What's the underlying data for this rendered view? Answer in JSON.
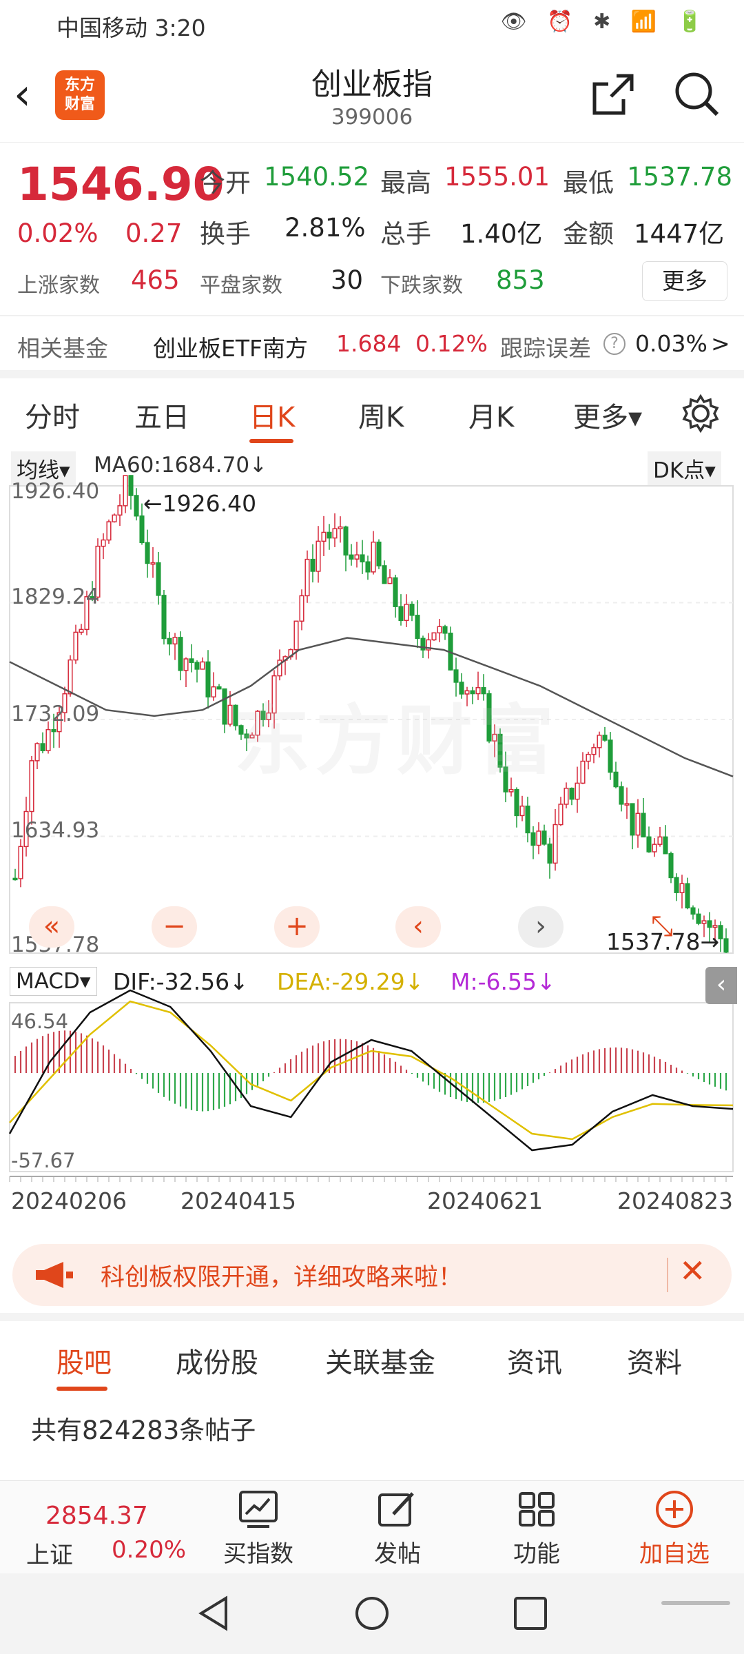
{
  "status_bar": {
    "carrier_time": "中国移动 3:20",
    "icons": "👁 ⏰ ✱ 📶 🔋"
  },
  "header": {
    "title": "创业板指",
    "code": "399006",
    "logo": [
      "东方",
      "财富"
    ]
  },
  "quote": {
    "price": "1546.90",
    "pct": "0.02%",
    "change": "0.27",
    "open_label": "今开",
    "open": "1540.52",
    "high_label": "最高",
    "high": "1555.01",
    "low_label": "最低",
    "low": "1537.78",
    "turnover_label": "换手",
    "turnover": "2.81%",
    "volume_label": "总手",
    "volume": "1.40亿",
    "amount_label": "金额",
    "amount": "1447亿",
    "up_label": "上涨家数",
    "up": "465",
    "flat_label": "平盘家数",
    "flat": "30",
    "down_label": "下跌家数",
    "down": "853",
    "more": "更多"
  },
  "fund": {
    "label": "相关基金",
    "name": "创业板ETF南方",
    "price": "1.684",
    "pct": "0.12%",
    "err_label": "跟踪误差",
    "err": "0.03%",
    "arrow": ">"
  },
  "period_tabs": [
    "分时",
    "五日",
    "日K",
    "周K",
    "月K",
    "更多▾"
  ],
  "chart": {
    "ma_selector": "均线▾",
    "ma60": "MA60:1684.70↓",
    "dk": "DK点▾",
    "y_labels": [
      "1926.40",
      "1829.24",
      "1732.09",
      "1634.93",
      "1537.78"
    ],
    "max_label": "←1926.40",
    "min_label": "1537.78→",
    "watermark": "东方财富",
    "macd_selector": "MACD▾",
    "dif": "DIF:-32.56↓",
    "dea": "DEA:-29.29↓",
    "m": "M:-6.55↓",
    "macd_top": "46.54",
    "macd_bottom": "-57.67",
    "x_labels": [
      "20240206",
      "20240415",
      "20240621",
      "20240823"
    ],
    "controls": [
      "«",
      "−",
      "+",
      "‹",
      "›",
      "⤡"
    ]
  },
  "chart_data": {
    "type": "candlestick",
    "ylim": [
      1537.78,
      1926.4
    ],
    "ma60_last": 1684.7,
    "close_path": [
      1600,
      1700,
      1720,
      1760,
      1800,
      1860,
      1900,
      1926,
      1880,
      1820,
      1790,
      1780,
      1760,
      1740,
      1720,
      1735,
      1760,
      1800,
      1850,
      1890,
      1880,
      1860,
      1870,
      1840,
      1820,
      1800,
      1810,
      1780,
      1760,
      1740,
      1700,
      1650,
      1640,
      1620,
      1660,
      1690,
      1720,
      1700,
      1650,
      1630,
      1620,
      1600,
      1580,
      1560,
      1546
    ]
  },
  "banner": {
    "text": "科创板权限开通，详细攻略来啦！",
    "close": "✕"
  },
  "bottom_tabs": [
    "股吧",
    "成份股",
    "关联基金",
    "资讯",
    "资料"
  ],
  "posts": "共有824283条帖子",
  "navbar": {
    "index_value": "2854.37",
    "index_name": "上证",
    "index_pct": "0.20%",
    "items": [
      "买指数",
      "发帖",
      "功能",
      "加自选"
    ]
  }
}
